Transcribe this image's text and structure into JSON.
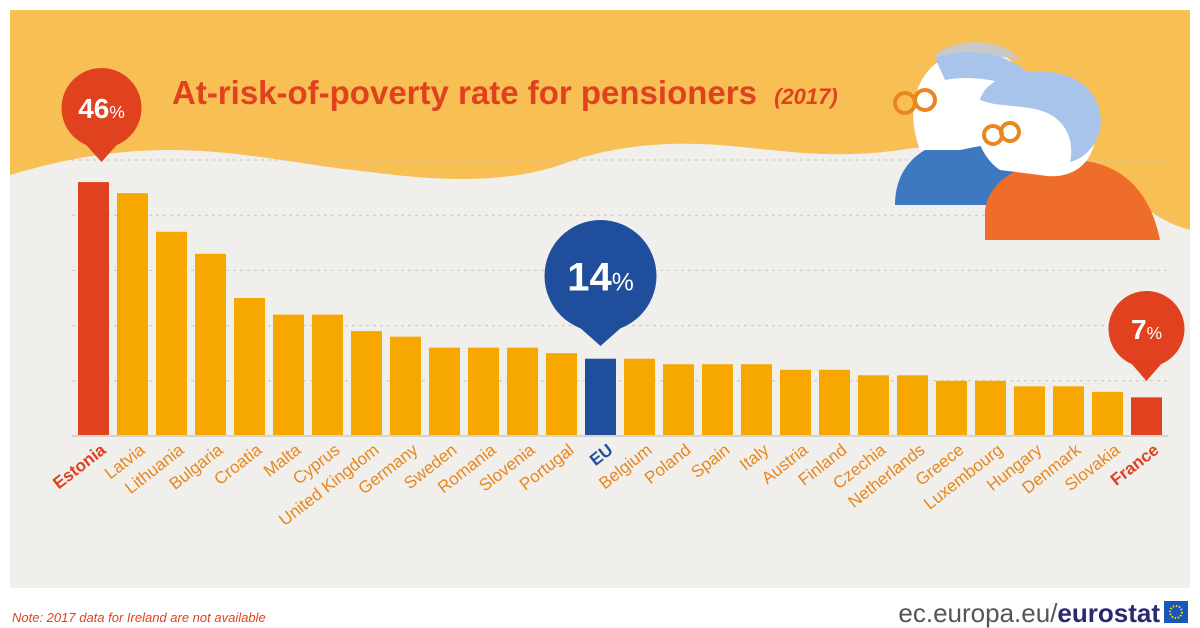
{
  "chart_data": {
    "type": "bar",
    "title": "At-risk-of-poverty rate for pensioners",
    "title_year": "(2017)",
    "categories": [
      "Estonia",
      "Latvia",
      "Lithuania",
      "Bulgaria",
      "Croatia",
      "Malta",
      "Cyprus",
      "United Kingdom",
      "Germany",
      "Sweden",
      "Romania",
      "Slovenia",
      "Portugal",
      "EU",
      "Belgium",
      "Poland",
      "Spain",
      "Italy",
      "Austria",
      "Finland",
      "Czechia",
      "Netherlands",
      "Greece",
      "Luxembourg",
      "Hungary",
      "Denmark",
      "Slovakia",
      "France"
    ],
    "values": [
      46,
      44,
      37,
      33,
      25,
      22,
      22,
      19,
      18,
      16,
      16,
      16,
      15,
      14,
      14,
      13,
      13,
      13,
      12,
      12,
      11,
      11,
      10,
      10,
      9,
      9,
      8,
      7
    ],
    "highlight": {
      "max": {
        "category": "Estonia",
        "label_number": "46",
        "label_unit": "%",
        "color": "#e0411f"
      },
      "eu": {
        "category": "EU",
        "label_number": "14",
        "label_unit": "%",
        "color": "#1f4f9c"
      },
      "min": {
        "category": "France",
        "label_number": "7",
        "label_unit": "%",
        "color": "#e0411f"
      }
    },
    "ylim": [
      0,
      50
    ],
    "grid": true,
    "colors": {
      "bar": "#f6a800",
      "highlight": "#e0411f",
      "eu": "#1f4f9c",
      "label": "#e8871e",
      "title": "#e0411f",
      "banner": "#f8bf54"
    }
  },
  "footer": {
    "note": "Note: 2017 data for Ireland are not available",
    "source_prefix": "ec.europa.eu/",
    "source_brand": "eurostat"
  },
  "illustration": {
    "icon": "pensioners-couple-icon"
  }
}
